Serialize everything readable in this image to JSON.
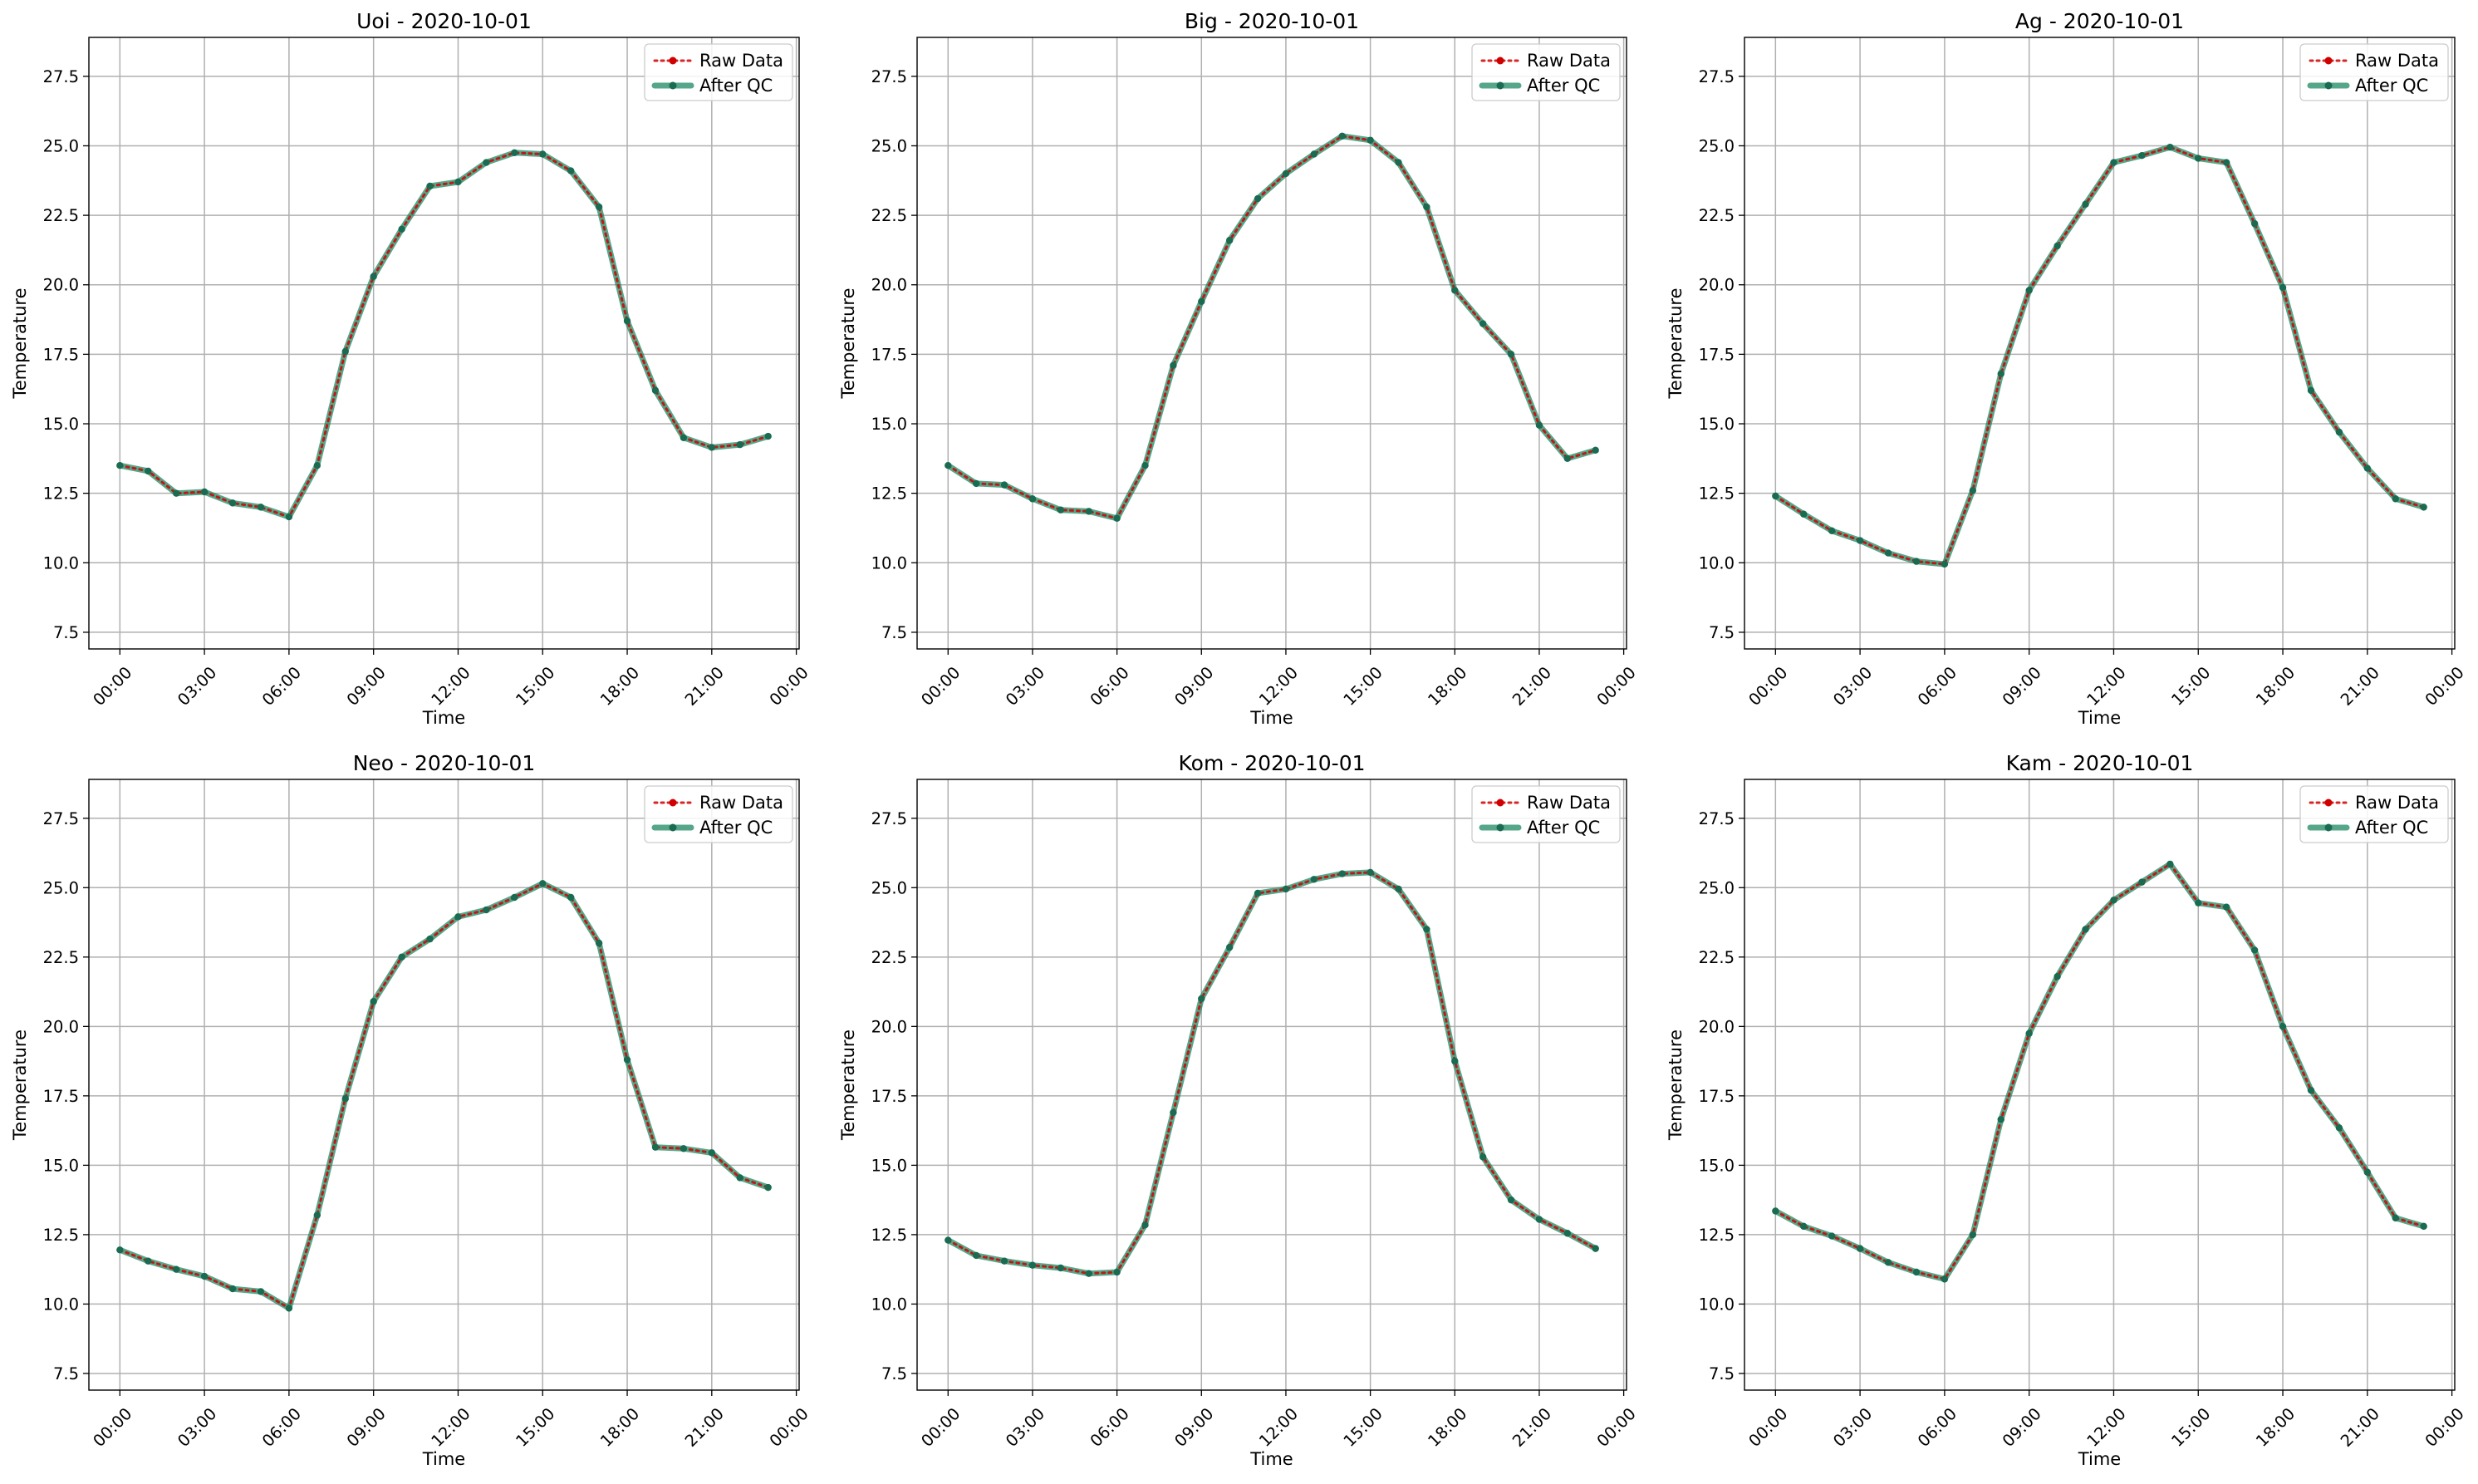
{
  "chart_data": [
    {
      "type": "line",
      "title": "Uoi - 2020-10-01",
      "xlabel": "Time",
      "ylabel": "Temperature",
      "x_hours": [
        0,
        1,
        2,
        3,
        4,
        5,
        6,
        7,
        8,
        9,
        10,
        11,
        12,
        13,
        14,
        15,
        16,
        17,
        18,
        19,
        20,
        21,
        22,
        23
      ],
      "xtick_labels": [
        "00:00",
        "03:00",
        "06:00",
        "09:00",
        "12:00",
        "15:00",
        "18:00",
        "21:00",
        "00:00"
      ],
      "ytick_labels": [
        "7.5",
        "10.0",
        "12.5",
        "15.0",
        "17.5",
        "20.0",
        "22.5",
        "25.0",
        "27.5"
      ],
      "ylim": [
        6.9,
        28.9
      ],
      "grid": true,
      "legend_position": "top-right",
      "series": [
        {
          "name": "Raw Data",
          "values": [
            13.5,
            13.3,
            12.5,
            12.55,
            12.15,
            12.0,
            11.65,
            13.5,
            17.6,
            20.3,
            22.0,
            23.55,
            23.7,
            24.4,
            24.75,
            24.7,
            24.1,
            22.8,
            18.7,
            16.2,
            14.5,
            14.15,
            14.25,
            14.55
          ]
        },
        {
          "name": "After QC",
          "values": [
            13.5,
            13.3,
            12.5,
            12.55,
            12.15,
            12.0,
            11.65,
            13.5,
            17.6,
            20.3,
            22.0,
            23.55,
            23.7,
            24.4,
            24.75,
            24.7,
            24.1,
            22.8,
            18.7,
            16.2,
            14.5,
            14.15,
            14.25,
            14.55
          ]
        }
      ]
    },
    {
      "type": "line",
      "title": "Big - 2020-10-01",
      "xlabel": "Time",
      "ylabel": "Temperature",
      "x_hours": [
        0,
        1,
        2,
        3,
        4,
        5,
        6,
        7,
        8,
        9,
        10,
        11,
        12,
        13,
        14,
        15,
        16,
        17,
        18,
        19,
        20,
        21,
        22,
        23
      ],
      "xtick_labels": [
        "00:00",
        "03:00",
        "06:00",
        "09:00",
        "12:00",
        "15:00",
        "18:00",
        "21:00",
        "00:00"
      ],
      "ytick_labels": [
        "7.5",
        "10.0",
        "12.5",
        "15.0",
        "17.5",
        "20.0",
        "22.5",
        "25.0",
        "27.5"
      ],
      "ylim": [
        6.9,
        28.9
      ],
      "grid": true,
      "legend_position": "top-right",
      "series": [
        {
          "name": "Raw Data",
          "values": [
            13.5,
            12.85,
            12.8,
            12.3,
            11.9,
            11.85,
            11.6,
            13.5,
            17.1,
            19.4,
            21.6,
            23.1,
            24.0,
            24.7,
            25.35,
            25.2,
            24.4,
            22.8,
            19.8,
            18.6,
            17.5,
            14.95,
            13.75,
            14.05
          ]
        },
        {
          "name": "After QC",
          "values": [
            13.5,
            12.85,
            12.8,
            12.3,
            11.9,
            11.85,
            11.6,
            13.5,
            17.1,
            19.4,
            21.6,
            23.1,
            24.0,
            24.7,
            25.35,
            25.2,
            24.4,
            22.8,
            19.8,
            18.6,
            17.5,
            14.95,
            13.75,
            14.05
          ]
        }
      ]
    },
    {
      "type": "line",
      "title": "Ag - 2020-10-01",
      "xlabel": "Time",
      "ylabel": "Temperature",
      "x_hours": [
        0,
        1,
        2,
        3,
        4,
        5,
        6,
        7,
        8,
        9,
        10,
        11,
        12,
        13,
        14,
        15,
        16,
        17,
        18,
        19,
        20,
        21,
        22,
        23
      ],
      "xtick_labels": [
        "00:00",
        "03:00",
        "06:00",
        "09:00",
        "12:00",
        "15:00",
        "18:00",
        "21:00",
        "00:00"
      ],
      "ytick_labels": [
        "7.5",
        "10.0",
        "12.5",
        "15.0",
        "17.5",
        "20.0",
        "22.5",
        "25.0",
        "27.5"
      ],
      "ylim": [
        6.9,
        28.9
      ],
      "grid": true,
      "legend_position": "top-right",
      "series": [
        {
          "name": "Raw Data",
          "values": [
            12.4,
            11.75,
            11.15,
            10.8,
            10.35,
            10.05,
            9.95,
            12.6,
            16.8,
            19.8,
            21.4,
            22.9,
            24.4,
            24.65,
            24.95,
            24.55,
            24.4,
            22.2,
            19.9,
            16.2,
            14.7,
            13.4,
            12.3,
            12.0
          ]
        },
        {
          "name": "After QC",
          "values": [
            12.4,
            11.75,
            11.15,
            10.8,
            10.35,
            10.05,
            9.95,
            12.6,
            16.8,
            19.8,
            21.4,
            22.9,
            24.4,
            24.65,
            24.95,
            24.55,
            24.4,
            22.2,
            19.9,
            16.2,
            14.7,
            13.4,
            12.3,
            12.0
          ]
        }
      ]
    },
    {
      "type": "line",
      "title": "Neo - 2020-10-01",
      "xlabel": "Time",
      "ylabel": "Temperature",
      "x_hours": [
        0,
        1,
        2,
        3,
        4,
        5,
        6,
        7,
        8,
        9,
        10,
        11,
        12,
        13,
        14,
        15,
        16,
        17,
        18,
        19,
        20,
        21,
        22,
        23
      ],
      "xtick_labels": [
        "00:00",
        "03:00",
        "06:00",
        "09:00",
        "12:00",
        "15:00",
        "18:00",
        "21:00",
        "00:00"
      ],
      "ytick_labels": [
        "7.5",
        "10.0",
        "12.5",
        "15.0",
        "17.5",
        "20.0",
        "22.5",
        "25.0",
        "27.5"
      ],
      "ylim": [
        6.9,
        28.9
      ],
      "grid": true,
      "legend_position": "top-right",
      "series": [
        {
          "name": "Raw Data",
          "values": [
            11.95,
            11.55,
            11.25,
            11.0,
            10.55,
            10.45,
            9.85,
            13.2,
            17.4,
            20.9,
            22.5,
            23.15,
            23.95,
            24.2,
            24.65,
            25.15,
            24.65,
            23.0,
            18.8,
            15.65,
            15.6,
            15.45,
            14.55,
            14.2
          ]
        },
        {
          "name": "After QC",
          "values": [
            11.95,
            11.55,
            11.25,
            11.0,
            10.55,
            10.45,
            9.85,
            13.2,
            17.4,
            20.9,
            22.5,
            23.15,
            23.95,
            24.2,
            24.65,
            25.15,
            24.65,
            23.0,
            18.8,
            15.65,
            15.6,
            15.45,
            14.55,
            14.2
          ]
        }
      ]
    },
    {
      "type": "line",
      "title": "Kom - 2020-10-01",
      "xlabel": "Time",
      "ylabel": "Temperature",
      "x_hours": [
        0,
        1,
        2,
        3,
        4,
        5,
        6,
        7,
        8,
        9,
        10,
        11,
        12,
        13,
        14,
        15,
        16,
        17,
        18,
        19,
        20,
        21,
        22,
        23
      ],
      "xtick_labels": [
        "00:00",
        "03:00",
        "06:00",
        "09:00",
        "12:00",
        "15:00",
        "18:00",
        "21:00",
        "00:00"
      ],
      "ytick_labels": [
        "7.5",
        "10.0",
        "12.5",
        "15.0",
        "17.5",
        "20.0",
        "22.5",
        "25.0",
        "27.5"
      ],
      "ylim": [
        6.9,
        28.9
      ],
      "grid": true,
      "legend_position": "top-right",
      "series": [
        {
          "name": "Raw Data",
          "values": [
            12.3,
            11.75,
            11.55,
            11.4,
            11.3,
            11.1,
            11.15,
            12.85,
            16.9,
            21.0,
            22.85,
            24.8,
            24.95,
            25.3,
            25.5,
            25.55,
            24.95,
            23.5,
            18.75,
            15.3,
            13.75,
            13.05,
            12.55,
            12.0
          ]
        },
        {
          "name": "After QC",
          "values": [
            12.3,
            11.75,
            11.55,
            11.4,
            11.3,
            11.1,
            11.15,
            12.85,
            16.9,
            21.0,
            22.85,
            24.8,
            24.95,
            25.3,
            25.5,
            25.55,
            24.95,
            23.5,
            18.75,
            15.3,
            13.75,
            13.05,
            12.55,
            12.0
          ]
        }
      ]
    },
    {
      "type": "line",
      "title": "Kam - 2020-10-01",
      "xlabel": "Time",
      "ylabel": "Temperature",
      "x_hours": [
        0,
        1,
        2,
        3,
        4,
        5,
        6,
        7,
        8,
        9,
        10,
        11,
        12,
        13,
        14,
        15,
        16,
        17,
        18,
        19,
        20,
        21,
        22,
        23
      ],
      "xtick_labels": [
        "00:00",
        "03:00",
        "06:00",
        "09:00",
        "12:00",
        "15:00",
        "18:00",
        "21:00",
        "00:00"
      ],
      "ytick_labels": [
        "7.5",
        "10.0",
        "12.5",
        "15.0",
        "17.5",
        "20.0",
        "22.5",
        "25.0",
        "27.5"
      ],
      "ylim": [
        6.9,
        28.9
      ],
      "grid": true,
      "legend_position": "top-right",
      "series": [
        {
          "name": "Raw Data",
          "values": [
            13.35,
            12.8,
            12.45,
            12.0,
            11.5,
            11.15,
            10.9,
            12.5,
            16.65,
            19.75,
            21.8,
            23.5,
            24.55,
            25.2,
            25.85,
            24.45,
            24.3,
            22.75,
            20.0,
            17.7,
            16.35,
            14.75,
            13.1,
            12.8
          ]
        },
        {
          "name": "After QC",
          "values": [
            13.35,
            12.8,
            12.45,
            12.0,
            11.5,
            11.15,
            10.9,
            12.5,
            16.65,
            19.75,
            21.8,
            23.5,
            24.55,
            25.2,
            25.85,
            24.45,
            24.3,
            22.75,
            20.0,
            17.7,
            16.35,
            14.75,
            13.1,
            12.8
          ]
        }
      ]
    }
  ],
  "colors": {
    "raw": "#d00000",
    "qc": "#1d8a63",
    "grid": "#b0b0b0"
  }
}
